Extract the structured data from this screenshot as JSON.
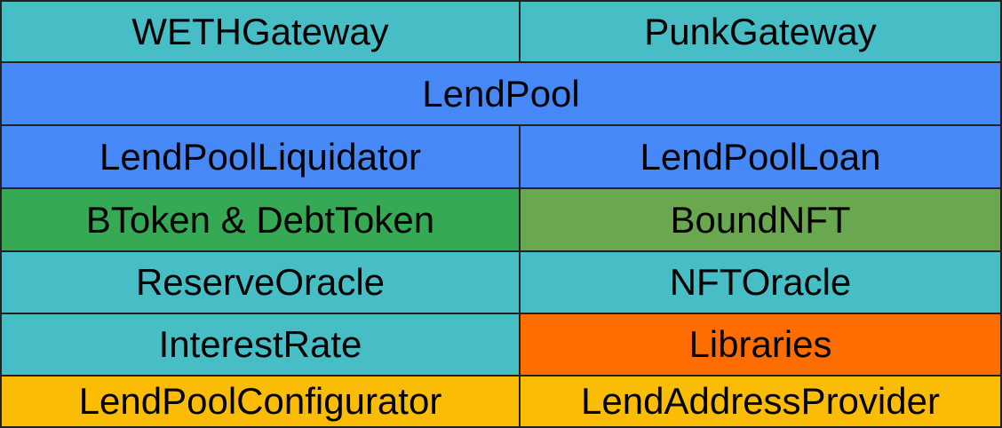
{
  "colors": {
    "teal": "#47bdc6",
    "blue": "#4689f6",
    "green": "#35a953",
    "olive": "#6aa84f",
    "orange": "#ff6d01",
    "amber": "#fabc05",
    "border": "#222222"
  },
  "rows": [
    {
      "left": "WETHGateway",
      "right": "PunkGateway"
    },
    {
      "full": "LendPool"
    },
    {
      "left": "LendPoolLiquidator",
      "right": "LendPoolLoan"
    },
    {
      "left": "BToken & DebtToken",
      "right": "BoundNFT"
    },
    {
      "left": "ReserveOracle",
      "right": "NFTOracle"
    },
    {
      "left": "InterestRate",
      "right": "Libraries"
    },
    {
      "left": "LendPoolConfigurator",
      "right": "LendAddressProvider"
    }
  ]
}
